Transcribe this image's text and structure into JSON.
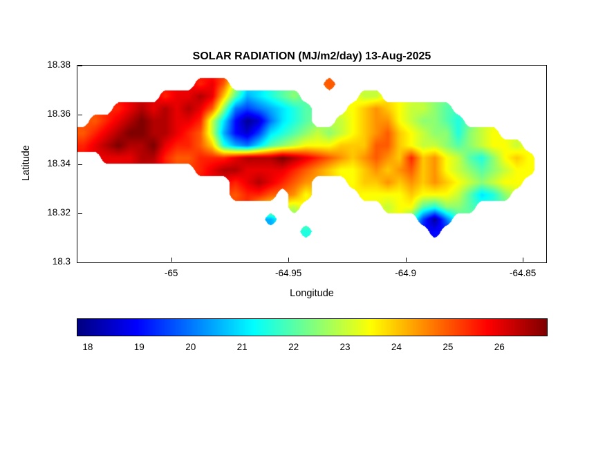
{
  "title": "SOLAR RADIATION (MJ/m2/day) 13-Aug-2025",
  "axes": {
    "xlabel": "Longitude",
    "ylabel": "Latitude",
    "xlim": [
      -65.04,
      -64.84
    ],
    "ylim": [
      18.3,
      18.38
    ],
    "xticks": [
      {
        "value": -65,
        "label": "-65"
      },
      {
        "value": -64.95,
        "label": "-64.95"
      },
      {
        "value": -64.9,
        "label": "-64.9"
      },
      {
        "value": -64.85,
        "label": "-64.85"
      }
    ],
    "yticks": [
      {
        "value": 18.38,
        "label": "18.38"
      },
      {
        "value": 18.36,
        "label": "18.36"
      },
      {
        "value": 18.34,
        "label": "18.34"
      },
      {
        "value": 18.32,
        "label": "18.32"
      },
      {
        "value": 18.3,
        "label": "18.3"
      }
    ]
  },
  "colorbar": {
    "orientation": "horizontal",
    "colormap": "jet",
    "vmin": 17.8,
    "vmax": 26.95,
    "ticks": [
      {
        "value": 18,
        "label": "18"
      },
      {
        "value": 19,
        "label": "19"
      },
      {
        "value": 20,
        "label": "20"
      },
      {
        "value": 21,
        "label": "21"
      },
      {
        "value": 22,
        "label": "22"
      },
      {
        "value": 23,
        "label": "23"
      },
      {
        "value": 24,
        "label": "24"
      },
      {
        "value": 25,
        "label": "25"
      },
      {
        "value": 26,
        "label": "26"
      }
    ]
  },
  "chart_data": {
    "type": "heatmap",
    "subtype": "filled-contour-island-map",
    "title": "SOLAR RADIATION (MJ/m2/day) 13-Aug-2025",
    "xlabel": "Longitude",
    "ylabel": "Latitude",
    "units": "MJ/m2/day",
    "xlim": [
      -65.04,
      -64.84
    ],
    "ylim": [
      18.3,
      18.38
    ],
    "colormap": "jet",
    "clim": [
      17.8,
      26.95
    ],
    "grid": {
      "lon0": -65.0375,
      "dlon": 0.005,
      "nx": 40,
      "lat0": 18.3775,
      "dlat": 0.005,
      "ny": 15,
      "values": [
        [
          null,
          null,
          null,
          null,
          null,
          null,
          null,
          null,
          null,
          null,
          null,
          null,
          null,
          null,
          null,
          null,
          null,
          null,
          null,
          null,
          null,
          null,
          null,
          null,
          null,
          null,
          null,
          null,
          null,
          null,
          null,
          null,
          null,
          null,
          null,
          null,
          null,
          null,
          null,
          null
        ],
        [
          null,
          null,
          null,
          null,
          null,
          null,
          null,
          null,
          null,
          null,
          25.5,
          26,
          25,
          null,
          null,
          null,
          null,
          null,
          null,
          null,
          null,
          25,
          null,
          null,
          null,
          null,
          null,
          null,
          null,
          null,
          null,
          null,
          null,
          null,
          null,
          null,
          null,
          null,
          null,
          null
        ],
        [
          null,
          null,
          null,
          null,
          null,
          null,
          null,
          25.5,
          26,
          26,
          26.5,
          26,
          24,
          22,
          20.5,
          21,
          21.5,
          22,
          22.5,
          null,
          null,
          null,
          null,
          null,
          23,
          23,
          null,
          null,
          null,
          null,
          null,
          null,
          null,
          null,
          null,
          null,
          null,
          null,
          null,
          null
        ],
        [
          null,
          null,
          null,
          25.5,
          26,
          26.5,
          26,
          26.5,
          26,
          26.5,
          26,
          25,
          22.5,
          20,
          19.5,
          20,
          20.5,
          21,
          21.5,
          22,
          null,
          null,
          null,
          23.5,
          24,
          24.5,
          24,
          23.5,
          23,
          23,
          22.5,
          22,
          null,
          null,
          null,
          null,
          null,
          null,
          null,
          null
        ],
        [
          null,
          25,
          25.5,
          26,
          26.5,
          27,
          26.5,
          26.5,
          26,
          26,
          25.5,
          23,
          21,
          19,
          18,
          18.5,
          20,
          21,
          21.5,
          22,
          null,
          null,
          23,
          23.5,
          24,
          24.5,
          24.5,
          23.5,
          23,
          22.5,
          22.5,
          22,
          21.5,
          null,
          null,
          null,
          null,
          null,
          null,
          null
        ],
        [
          25,
          25.5,
          26,
          26.5,
          27,
          27,
          26.5,
          26.5,
          26,
          25.5,
          25,
          23,
          20.5,
          19,
          18.5,
          19.5,
          21,
          21.5,
          22,
          22.5,
          23,
          22.5,
          23,
          23.5,
          24,
          24.5,
          25,
          24,
          23.5,
          23,
          22.5,
          22.5,
          21.5,
          22.5,
          23,
          23.5,
          null,
          null,
          null,
          null
        ],
        [
          25.5,
          26,
          26.5,
          27,
          26.5,
          26.5,
          27,
          26,
          25.5,
          25.5,
          25,
          24,
          21.5,
          20.5,
          20,
          21,
          22,
          22.5,
          23,
          23.5,
          23.5,
          23.5,
          24,
          24,
          24,
          25,
          25,
          24,
          23.5,
          23,
          23,
          22.5,
          22,
          22.5,
          23,
          23.5,
          23.5,
          23,
          null,
          null
        ],
        [
          null,
          null,
          26,
          26,
          26,
          26.5,
          26.5,
          25.5,
          25,
          25,
          25.5,
          25.5,
          25.5,
          26,
          26.5,
          26.5,
          26.5,
          27,
          26.5,
          26,
          25.5,
          25,
          24.5,
          24,
          24.5,
          25,
          24.5,
          24,
          25.5,
          24,
          24.5,
          23.5,
          23,
          22,
          21.5,
          22.5,
          23.5,
          24,
          23.5,
          null
        ],
        [
          null,
          null,
          null,
          null,
          null,
          null,
          null,
          null,
          null,
          null,
          25.5,
          26,
          26.5,
          26.5,
          26,
          26,
          26,
          26,
          25.5,
          25,
          24.5,
          24,
          23.5,
          23.5,
          24,
          24.5,
          24,
          24.5,
          25,
          24,
          24.5,
          23.5,
          23,
          22.5,
          22,
          22.5,
          23,
          23.5,
          23.5,
          null
        ],
        [
          null,
          null,
          null,
          null,
          null,
          null,
          null,
          null,
          null,
          null,
          null,
          null,
          null,
          25.5,
          26,
          26.5,
          26,
          25.5,
          25,
          24.5,
          null,
          null,
          null,
          23.5,
          24,
          24,
          24.5,
          24,
          24.5,
          24,
          24.5,
          24,
          23.5,
          23,
          22.5,
          23,
          23.5,
          23.5,
          null,
          null
        ],
        [
          null,
          null,
          null,
          null,
          null,
          null,
          null,
          null,
          null,
          null,
          null,
          null,
          null,
          25,
          25.5,
          25.5,
          25,
          null,
          24.5,
          23.5,
          null,
          null,
          null,
          null,
          23.5,
          23.5,
          23.5,
          23.5,
          24,
          23.5,
          23.5,
          23.5,
          23,
          22,
          21,
          21.5,
          22.5,
          null,
          null,
          null
        ],
        [
          null,
          null,
          null,
          null,
          null,
          null,
          null,
          null,
          null,
          null,
          null,
          null,
          null,
          null,
          null,
          null,
          null,
          null,
          23,
          null,
          null,
          null,
          null,
          null,
          null,
          null,
          23,
          23.5,
          23.5,
          22,
          21.5,
          22.5,
          22.5,
          22,
          null,
          null,
          null,
          null,
          null,
          null
        ],
        [
          null,
          null,
          null,
          null,
          null,
          null,
          null,
          null,
          null,
          null,
          null,
          null,
          null,
          null,
          null,
          null,
          20.5,
          null,
          null,
          null,
          null,
          null,
          null,
          null,
          null,
          null,
          null,
          null,
          null,
          19.5,
          18,
          20,
          null,
          null,
          null,
          null,
          null,
          null,
          null,
          null
        ],
        [
          null,
          null,
          null,
          null,
          null,
          null,
          null,
          null,
          null,
          null,
          null,
          null,
          null,
          null,
          null,
          null,
          null,
          null,
          null,
          21.5,
          null,
          null,
          null,
          null,
          null,
          null,
          null,
          null,
          null,
          null,
          19,
          null,
          null,
          null,
          null,
          null,
          null,
          null,
          null,
          null
        ],
        [
          null,
          null,
          null,
          null,
          null,
          null,
          null,
          null,
          null,
          null,
          null,
          null,
          null,
          null,
          null,
          null,
          null,
          null,
          null,
          null,
          null,
          null,
          null,
          null,
          null,
          null,
          null,
          null,
          null,
          null,
          null,
          null,
          null,
          null,
          null,
          null,
          null,
          null,
          null,
          null
        ]
      ]
    }
  }
}
